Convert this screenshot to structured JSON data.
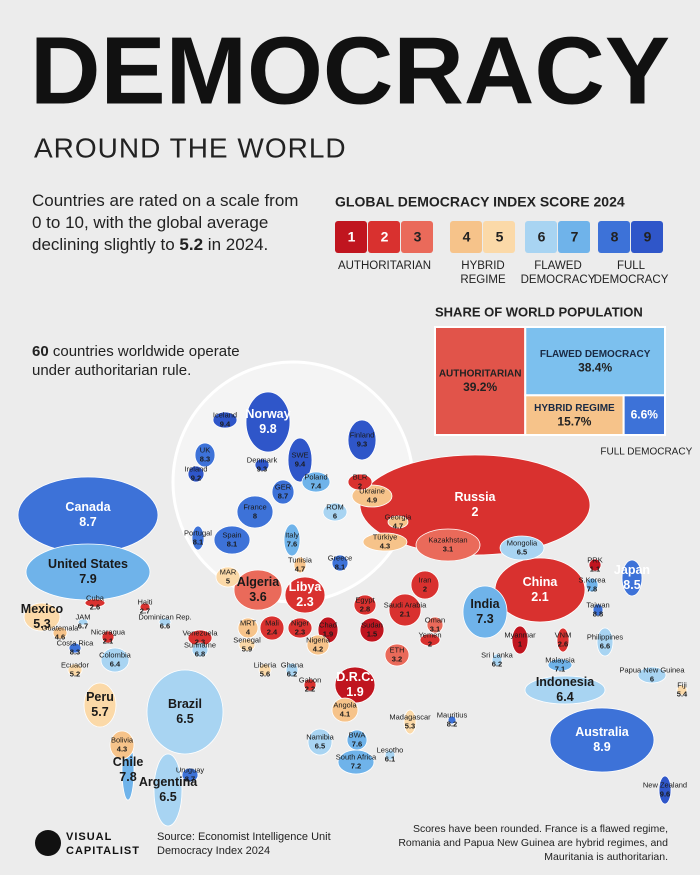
{
  "header": {
    "title": "DEMOCRACY",
    "subtitle": "AROUND THE WORLD"
  },
  "intro": {
    "lines": [
      "Countries are rated on a scale from",
      "0 to 10, with the global average",
      "declining slightly to "
    ],
    "highlight": "5.2",
    "tail": " in 2024."
  },
  "note": {
    "count": "60",
    "lines": [
      " countries worldwide operate",
      "under authoritarian rule."
    ]
  },
  "legend": {
    "title": "GLOBAL DEMOCRACY INDEX SCORE 2024",
    "scores": [
      1,
      2,
      3,
      4,
      5,
      6,
      7,
      8,
      9
    ],
    "colors": [
      "#c0151f",
      "#d9312f",
      "#ea6a5a",
      "#f6c38a",
      "#fbd9a8",
      "#a8d4f2",
      "#6fb3ea",
      "#3d72d8",
      "#2f56c9"
    ],
    "groups": [
      {
        "lines": [
          "AUTHORITARIAN"
        ]
      },
      {
        "lines": [
          "HYBRID",
          "REGIME"
        ]
      },
      {
        "lines": [
          "FLAWED",
          "DEMOCRACY"
        ]
      },
      {
        "lines": [
          "FULL",
          "DEMOCRACY"
        ]
      }
    ]
  },
  "population": {
    "title": "SHARE OF WORLD POPULATION",
    "segments": [
      {
        "name": "AUTHORITARIAN",
        "value": 39.2,
        "label": "39.2%",
        "color": "#e1544a"
      },
      {
        "name": "FLAWED DEMOCRACY",
        "value": 38.4,
        "label": "38.4%",
        "color": "#7cc0ee"
      },
      {
        "name": "HYBRID REGIME",
        "value": 15.7,
        "label": "15.7%",
        "color": "#f6c38a"
      },
      {
        "name": "FULL DEMOCRACY",
        "value": 6.6,
        "label": "6.6%",
        "color": "#3d72d8"
      }
    ]
  },
  "countries": [
    {
      "name": "Russia",
      "score": 2.0
    },
    {
      "name": "Canada",
      "score": 8.7
    },
    {
      "name": "United States",
      "score": 7.9
    },
    {
      "name": "China",
      "score": 2.1
    },
    {
      "name": "Brazil",
      "score": 6.5
    },
    {
      "name": "Australia",
      "score": 8.9
    },
    {
      "name": "Kazakhstan",
      "score": 3.1
    },
    {
      "name": "Mongolia",
      "score": 6.5
    },
    {
      "name": "India",
      "score": 7.3
    },
    {
      "name": "Algeria",
      "score": 3.6
    },
    {
      "name": "Libya",
      "score": 2.3
    },
    {
      "name": "Argentina",
      "score": 6.5
    },
    {
      "name": "D.R.C.",
      "score": 1.9
    },
    {
      "name": "Iran",
      "score": 2.0
    },
    {
      "name": "Saudi Arabia",
      "score": 2.1
    },
    {
      "name": "Indonesia",
      "score": 6.4
    },
    {
      "name": "Peru",
      "score": 5.7
    },
    {
      "name": "Mexico",
      "score": 5.3
    },
    {
      "name": "Egypt",
      "score": 2.8
    },
    {
      "name": "Sudan",
      "score": 1.5
    },
    {
      "name": "Chad",
      "score": 1.9
    },
    {
      "name": "Niger",
      "score": 2.3
    },
    {
      "name": "Mali",
      "score": 2.4
    },
    {
      "name": "MRT",
      "score": 4.0
    },
    {
      "name": "ETH",
      "score": 3.2
    },
    {
      "name": "Angola",
      "score": 4.1
    },
    {
      "name": "Namibia",
      "score": 6.5
    },
    {
      "name": "BWA",
      "score": 7.6
    },
    {
      "name": "South Africa",
      "score": 7.2
    },
    {
      "name": "Bolivia",
      "score": 4.3
    },
    {
      "name": "Chile",
      "score": 7.8
    },
    {
      "name": "Colombia",
      "score": 6.4
    },
    {
      "name": "Venezuela",
      "score": 2.3
    },
    {
      "name": "Norway",
      "score": 9.8
    },
    {
      "name": "SWE",
      "score": 9.4
    },
    {
      "name": "Finland",
      "score": 9.3
    },
    {
      "name": "Iceland",
      "score": 9.4
    },
    {
      "name": "UK",
      "score": 8.3
    },
    {
      "name": "Ireland",
      "score": 9.2
    },
    {
      "name": "Denmark",
      "score": 9.3
    },
    {
      "name": "Poland",
      "score": 7.4
    },
    {
      "name": "BLR",
      "score": 2.0
    },
    {
      "name": "GER",
      "score": 8.7
    },
    {
      "name": "France",
      "score": 8.0
    },
    {
      "name": "Ukraine",
      "score": 4.9
    },
    {
      "name": "ROM",
      "score": 6.0
    },
    {
      "name": "Spain",
      "score": 8.1
    },
    {
      "name": "Portugal",
      "score": 8.1
    },
    {
      "name": "Italy",
      "score": 7.6
    },
    {
      "name": "Georgia",
      "score": 4.7
    },
    {
      "name": "Türkiye",
      "score": 4.3
    },
    {
      "name": "Greece",
      "score": 8.1
    },
    {
      "name": "Tunisia",
      "score": 4.7
    },
    {
      "name": "MAR",
      "score": 5.0
    },
    {
      "name": "PRK",
      "score": 1.1
    },
    {
      "name": "S.Korea",
      "score": 7.8
    },
    {
      "name": "Japan",
      "score": 8.5
    },
    {
      "name": "Taiwan",
      "score": 8.8
    },
    {
      "name": "Oman",
      "score": 3.1
    },
    {
      "name": "Yemen",
      "score": 2.0
    },
    {
      "name": "Myanmar",
      "score": 1.0
    },
    {
      "name": "VNM",
      "score": 2.6
    },
    {
      "name": "Philippines",
      "score": 6.6
    },
    {
      "name": "Malaysia",
      "score": 7.1
    },
    {
      "name": "Sri Lanka",
      "score": 6.2
    },
    {
      "name": "Papua New Guinea",
      "score": 6.0
    },
    {
      "name": "Fiji",
      "score": 5.4
    },
    {
      "name": "New Zealand",
      "score": 9.6
    },
    {
      "name": "Senegal",
      "score": 5.9
    },
    {
      "name": "Nigeria",
      "score": 4.2
    },
    {
      "name": "Liberia",
      "score": 5.6
    },
    {
      "name": "Ghana",
      "score": 6.2
    },
    {
      "name": "Gabon",
      "score": 2.2
    },
    {
      "name": "Lesotho",
      "score": 6.1
    },
    {
      "name": "Madagascar",
      "score": 5.3
    },
    {
      "name": "Mauritius",
      "score": 8.2
    },
    {
      "name": "Cuba",
      "score": 2.6
    },
    {
      "name": "Haiti",
      "score": 2.7
    },
    {
      "name": "JAM",
      "score": 6.7
    },
    {
      "name": "Dominican Rep.",
      "score": 6.6
    },
    {
      "name": "Guatemala",
      "score": 4.6
    },
    {
      "name": "Nicaragua",
      "score": 2.1
    },
    {
      "name": "Costa Rica",
      "score": 8.3
    },
    {
      "name": "Ecuador",
      "score": 5.2
    },
    {
      "name": "Suriname",
      "score": 6.8
    },
    {
      "name": "Uruguay",
      "score": 8.7
    }
  ],
  "footer": {
    "brand": [
      "VISUAL",
      "CAPITALIST"
    ],
    "source": [
      "Source: Economist Intelligence Unit",
      "Democracy Index 2024"
    ],
    "note": [
      "Scores have been rounded. France is a flawed regime,",
      "Romania and Papua New Guinea are hybrid regimes, and",
      "Mauritania is authoritarian."
    ]
  }
}
